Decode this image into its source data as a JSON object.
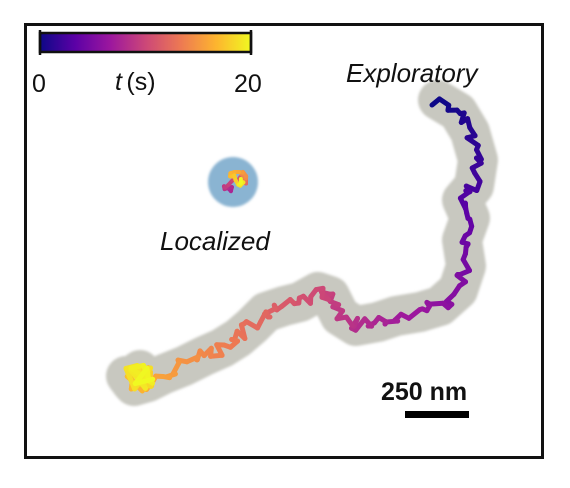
{
  "colorbar": {
    "min_label": "0",
    "max_label": "20",
    "var_label": "t",
    "unit_label": "(s)",
    "min_value": 0,
    "max_value": 20,
    "colormap": "plasma",
    "gradient": [
      "#0d0887",
      "#5c01a6",
      "#9c179e",
      "#cc4778",
      "#ed7953",
      "#fdb42f",
      "#f0f921"
    ]
  },
  "trajectories": {
    "exploratory": {
      "label": "Exploratory",
      "halo_color": "#c8c8c0"
    },
    "localized": {
      "label": "Localized",
      "halo_color": "#8ab4d2"
    }
  },
  "scale_bar": {
    "label": "250 nm"
  },
  "colors": {
    "frame": "#111111",
    "background": "#ffffff"
  }
}
